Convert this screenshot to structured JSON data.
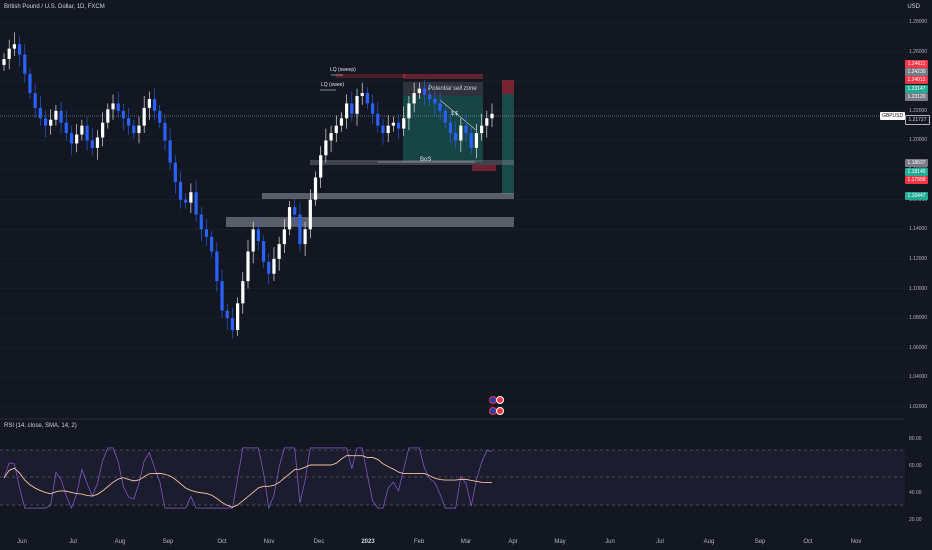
{
  "header": {
    "symbol_title": "British Pound / U.S. Dollar, 1D, FXCM",
    "currency": "USD"
  },
  "price_axis": {
    "ticks": [
      "1.28000",
      "1.26000",
      "1.24000",
      "1.22000",
      "1.20000",
      "1.18000",
      "1.16000",
      "1.14000",
      "1.12000",
      "1.10000",
      "1.08000",
      "1.06000",
      "1.04000",
      "1.02000"
    ],
    "pair_label": "GBPUSD",
    "tags": [
      {
        "label": "1.24611",
        "color": "#f23645"
      },
      {
        "label": "1.24230",
        "color": "#787b86"
      },
      {
        "label": "1.24012",
        "color": "#f23645"
      },
      {
        "label": "1.23147",
        "color": "#22ab94"
      },
      {
        "label": "1.23120",
        "color": "#787b86"
      },
      {
        "label": "1.21727",
        "color": "#131722"
      },
      {
        "label": "1.18637",
        "color": "#787b86"
      },
      {
        "label": "1.18145",
        "color": "#22ab94"
      },
      {
        "label": "1.17958",
        "color": "#f23645"
      },
      {
        "label": "1.16447",
        "color": "#22ab94"
      }
    ]
  },
  "rsi": {
    "legend": "RSI (14, close, SMA, 14, 2)",
    "ticks": [
      "80.00",
      "60.00",
      "40.00",
      "20.00"
    ]
  },
  "time_axis": {
    "labels": [
      "Jun",
      "Jul",
      "Aug",
      "Sep",
      "Oct",
      "Nov",
      "Dec",
      "2023",
      "Feb",
      "Mar",
      "Apr",
      "May",
      "Jun",
      "Jul",
      "Aug",
      "Sep",
      "Oct",
      "Nov"
    ]
  },
  "annotations": {
    "lq_sweep_1": "LQ (sweep)",
    "lq_sweep_2": "LQ (swee)",
    "potential_sell_zone": "Potential sell zone",
    "bos": "BoS",
    "diagonal_note": "$ $"
  },
  "colors": {
    "background": "#131722",
    "bull_candle": "#ffffff",
    "bear_candle": "#2962ff",
    "profit_zone": "#22ab94",
    "stop_zone": "#f23645",
    "rsi_line": "#7e57c2",
    "rsi_ma": "#f7c59f"
  },
  "chart_data": {
    "type": "candlestick",
    "title": "British Pound / U.S. Dollar, 1D, FXCM",
    "ylim": [
      1.02,
      1.28
    ],
    "close_series_approx": [
      1.255,
      1.262,
      1.265,
      1.258,
      1.245,
      1.232,
      1.222,
      1.215,
      1.21,
      1.214,
      1.22,
      1.212,
      1.205,
      1.198,
      1.204,
      1.21,
      1.2,
      1.195,
      1.202,
      1.212,
      1.221,
      1.225,
      1.22,
      1.215,
      1.21,
      1.205,
      1.21,
      1.222,
      1.228,
      1.22,
      1.212,
      1.2,
      1.185,
      1.172,
      1.16,
      1.158,
      1.165,
      1.15,
      1.14,
      1.135,
      1.125,
      1.105,
      1.085,
      1.08,
      1.072,
      1.09,
      1.105,
      1.125,
      1.14,
      1.132,
      1.118,
      1.11,
      1.12,
      1.13,
      1.14,
      1.155,
      1.15,
      1.13,
      1.14,
      1.16,
      1.175,
      1.19,
      1.2,
      1.205,
      1.21,
      1.215,
      1.225,
      1.218,
      1.23,
      1.232,
      1.225,
      1.218,
      1.21,
      1.205,
      1.21,
      1.212,
      1.208,
      1.215,
      1.225,
      1.232,
      1.235,
      1.231,
      1.228,
      1.225,
      1.22,
      1.212,
      1.205,
      1.2,
      1.21,
      1.205,
      1.195,
      1.205,
      1.21,
      1.215,
      1.218
    ],
    "rsi_ylim": [
      20,
      80
    ]
  }
}
